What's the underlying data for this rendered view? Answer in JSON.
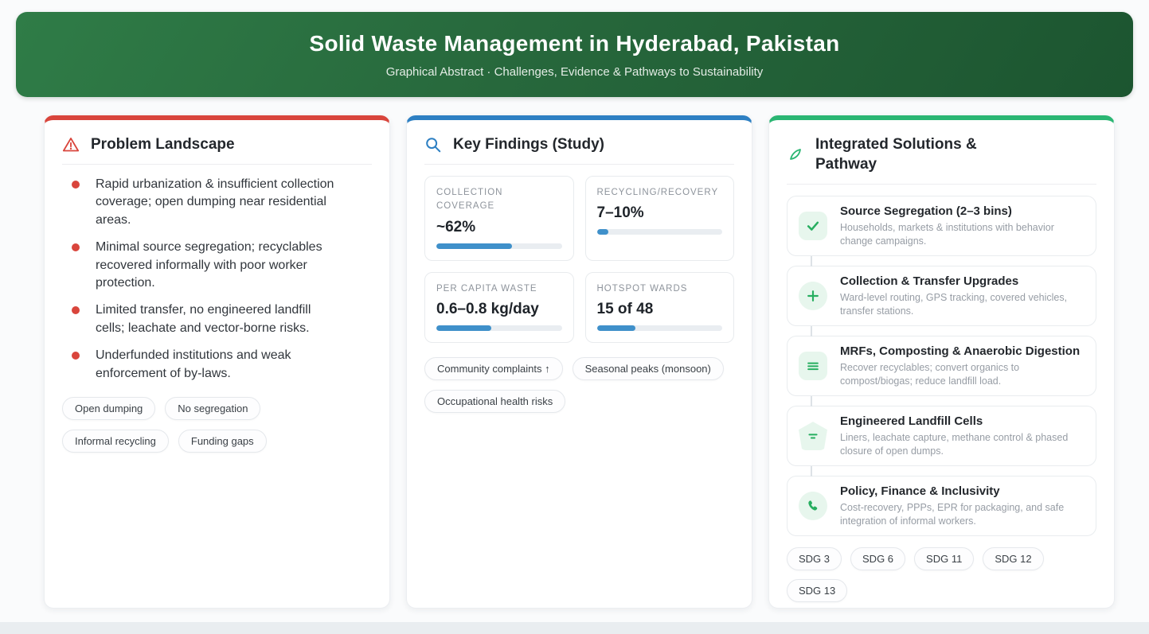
{
  "header": {
    "title": "Solid Waste Management in Hyderabad, Pakistan",
    "subtitle": "Graphical Abstract · Challenges, Evidence & Pathways to Sustainability"
  },
  "colors": {
    "accent_red": "#d9453c",
    "accent_blue": "#2e80c3",
    "accent_green": "#2bb673",
    "progress_fill": "#3f90ca",
    "header_gradient_start": "#2f7c47",
    "header_gradient_end": "#1c5530"
  },
  "problem_card": {
    "icon": "warning-triangle-icon",
    "title": "Problem Landscape",
    "bullets": [
      "Rapid urbanization & insufficient collection coverage; open dumping near residential areas.",
      "Minimal source segregation; recyclables recovered informally with poor worker protection.",
      "Limited transfer, no engineered landfill cells; leachate and vector-borne risks.",
      "Underfunded institutions and weak enforcement of by-laws."
    ],
    "tags": [
      "Open dumping",
      "No segregation",
      "Informal recycling",
      "Funding gaps"
    ]
  },
  "findings_card": {
    "icon": "search-icon",
    "title": "Key Findings (Study)",
    "stats": [
      {
        "label": "COLLECTION COVERAGE",
        "value": "~62%",
        "progress": 60
      },
      {
        "label": "RECYCLING/RECOVERY",
        "value": "7–10%",
        "progress": 9
      },
      {
        "label": "PER CAPITA WASTE",
        "value": "0.6–0.8 kg/day",
        "progress": 44
      },
      {
        "label": "HOTSPOT WARDS",
        "value": "15 of 48",
        "progress": 31
      }
    ],
    "pills": [
      "Community complaints ↑",
      "Seasonal peaks (monsoon)",
      "Occupational health risks"
    ]
  },
  "solutions_card": {
    "icon": "leaf-icon",
    "title": "Integrated Solutions & Pathway",
    "steps": [
      {
        "icon": "check-icon",
        "title": "Source Segregation (2–3 bins)",
        "desc": "Households, markets & institutions with behavior change campaigns."
      },
      {
        "icon": "plus-icon",
        "title": "Collection & Transfer Upgrades",
        "desc": "Ward-level routing, GPS tracking, covered vehicles, transfer stations."
      },
      {
        "icon": "layers-icon",
        "title": "MRFs, Composting & Anaerobic Digestion",
        "desc": "Recover recyclables; convert organics to compost/biogas; reduce landfill load."
      },
      {
        "icon": "landfill-icon",
        "title": "Engineered Landfill Cells",
        "desc": "Liners, leachate capture, methane control & phased closure of open dumps."
      },
      {
        "icon": "phone-icon",
        "title": "Policy, Finance & Inclusivity",
        "desc": "Cost-recovery, PPPs, EPR for packaging, and safe integration of informal workers."
      }
    ],
    "sdg_tags": [
      "SDG 3",
      "SDG 6",
      "SDG 11",
      "SDG 12",
      "SDG 13"
    ]
  }
}
